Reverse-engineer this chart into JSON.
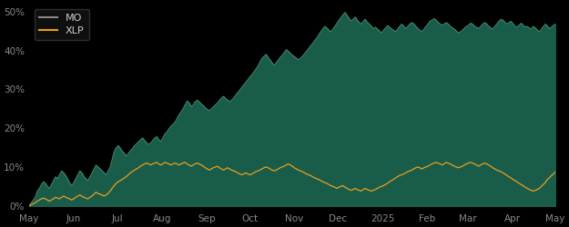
{
  "background_color": "#000000",
  "plot_bg_color": "#000000",
  "fill_color": "#1a5c4a",
  "mo_line_color": "#4a8c7c",
  "xlp_line_color": "#e8a020",
  "legend_text_color": "#cccccc",
  "tick_color": "#888888",
  "ylim": [
    -0.01,
    0.52
  ],
  "yticks": [
    0.0,
    0.1,
    0.2,
    0.3,
    0.4,
    0.5
  ],
  "ytick_labels": [
    "0%",
    "10%",
    "20%",
    "30%",
    "40%",
    "50%"
  ],
  "x_tick_labels": [
    "May",
    "Jun",
    "Jul",
    "Aug",
    "Sep",
    "Oct",
    "Nov",
    "Dec",
    "2025",
    "Feb",
    "Mar",
    "Apr",
    "May"
  ],
  "mo_data": [
    0.0,
    0.008,
    0.015,
    0.022,
    0.038,
    0.045,
    0.055,
    0.062,
    0.058,
    0.05,
    0.045,
    0.055,
    0.065,
    0.075,
    0.07,
    0.08,
    0.09,
    0.085,
    0.078,
    0.068,
    0.058,
    0.052,
    0.06,
    0.07,
    0.08,
    0.09,
    0.085,
    0.075,
    0.07,
    0.065,
    0.075,
    0.085,
    0.095,
    0.105,
    0.1,
    0.095,
    0.09,
    0.085,
    0.08,
    0.09,
    0.1,
    0.12,
    0.14,
    0.15,
    0.155,
    0.148,
    0.14,
    0.135,
    0.128,
    0.135,
    0.142,
    0.148,
    0.155,
    0.16,
    0.165,
    0.17,
    0.175,
    0.168,
    0.162,
    0.158,
    0.162,
    0.168,
    0.175,
    0.178,
    0.17,
    0.165,
    0.175,
    0.185,
    0.19,
    0.198,
    0.205,
    0.21,
    0.215,
    0.225,
    0.235,
    0.242,
    0.25,
    0.26,
    0.27,
    0.265,
    0.255,
    0.26,
    0.268,
    0.272,
    0.268,
    0.262,
    0.258,
    0.252,
    0.248,
    0.245,
    0.25,
    0.255,
    0.26,
    0.265,
    0.272,
    0.278,
    0.282,
    0.276,
    0.272,
    0.268,
    0.272,
    0.278,
    0.285,
    0.292,
    0.298,
    0.305,
    0.312,
    0.318,
    0.325,
    0.332,
    0.338,
    0.345,
    0.352,
    0.36,
    0.37,
    0.38,
    0.385,
    0.39,
    0.382,
    0.375,
    0.368,
    0.362,
    0.368,
    0.375,
    0.382,
    0.388,
    0.395,
    0.402,
    0.398,
    0.392,
    0.388,
    0.384,
    0.38,
    0.376,
    0.38,
    0.385,
    0.392,
    0.398,
    0.405,
    0.412,
    0.418,
    0.425,
    0.432,
    0.44,
    0.448,
    0.455,
    0.462,
    0.458,
    0.452,
    0.448,
    0.455,
    0.462,
    0.47,
    0.478,
    0.485,
    0.492,
    0.498,
    0.49,
    0.482,
    0.476,
    0.48,
    0.486,
    0.478,
    0.472,
    0.468,
    0.475,
    0.48,
    0.472,
    0.468,
    0.462,
    0.456,
    0.46,
    0.455,
    0.45,
    0.445,
    0.452,
    0.458,
    0.464,
    0.46,
    0.455,
    0.452,
    0.448,
    0.455,
    0.462,
    0.468,
    0.462,
    0.456,
    0.462,
    0.468,
    0.472,
    0.468,
    0.462,
    0.456,
    0.452,
    0.448,
    0.455,
    0.462,
    0.468,
    0.475,
    0.478,
    0.482,
    0.478,
    0.472,
    0.468,
    0.465,
    0.468,
    0.472,
    0.468,
    0.462,
    0.458,
    0.455,
    0.45,
    0.445,
    0.448,
    0.452,
    0.458,
    0.462,
    0.465,
    0.47,
    0.468,
    0.462,
    0.46,
    0.456,
    0.462,
    0.468,
    0.472,
    0.468,
    0.462,
    0.458,
    0.455,
    0.462,
    0.468,
    0.475,
    0.48,
    0.478,
    0.472,
    0.468,
    0.472,
    0.475,
    0.468,
    0.462,
    0.46,
    0.465,
    0.47,
    0.465,
    0.46,
    0.462,
    0.458,
    0.455,
    0.462,
    0.458,
    0.452,
    0.448,
    0.455,
    0.462,
    0.468,
    0.462,
    0.456,
    0.46,
    0.465,
    0.468
  ],
  "xlp_data": [
    0.0,
    0.003,
    0.005,
    0.008,
    0.012,
    0.015,
    0.018,
    0.02,
    0.018,
    0.015,
    0.012,
    0.015,
    0.018,
    0.022,
    0.02,
    0.018,
    0.022,
    0.025,
    0.022,
    0.02,
    0.018,
    0.015,
    0.018,
    0.022,
    0.025,
    0.028,
    0.025,
    0.022,
    0.02,
    0.018,
    0.022,
    0.025,
    0.03,
    0.035,
    0.032,
    0.03,
    0.028,
    0.025,
    0.028,
    0.032,
    0.038,
    0.045,
    0.052,
    0.058,
    0.062,
    0.065,
    0.068,
    0.072,
    0.075,
    0.08,
    0.085,
    0.088,
    0.092,
    0.095,
    0.098,
    0.102,
    0.105,
    0.108,
    0.11,
    0.108,
    0.105,
    0.108,
    0.11,
    0.112,
    0.108,
    0.105,
    0.108,
    0.112,
    0.11,
    0.108,
    0.105,
    0.108,
    0.11,
    0.108,
    0.105,
    0.108,
    0.11,
    0.112,
    0.108,
    0.105,
    0.102,
    0.105,
    0.108,
    0.11,
    0.108,
    0.105,
    0.102,
    0.098,
    0.095,
    0.092,
    0.095,
    0.098,
    0.1,
    0.102,
    0.098,
    0.095,
    0.092,
    0.095,
    0.098,
    0.095,
    0.092,
    0.09,
    0.088,
    0.085,
    0.082,
    0.08,
    0.082,
    0.085,
    0.082,
    0.08,
    0.082,
    0.085,
    0.088,
    0.09,
    0.092,
    0.095,
    0.098,
    0.1,
    0.098,
    0.095,
    0.092,
    0.09,
    0.092,
    0.095,
    0.098,
    0.1,
    0.102,
    0.105,
    0.108,
    0.105,
    0.102,
    0.098,
    0.095,
    0.092,
    0.09,
    0.088,
    0.085,
    0.082,
    0.08,
    0.078,
    0.075,
    0.072,
    0.07,
    0.068,
    0.065,
    0.062,
    0.06,
    0.058,
    0.055,
    0.052,
    0.05,
    0.048,
    0.045,
    0.048,
    0.05,
    0.052,
    0.048,
    0.045,
    0.042,
    0.04,
    0.042,
    0.045,
    0.042,
    0.04,
    0.038,
    0.042,
    0.045,
    0.042,
    0.04,
    0.038,
    0.04,
    0.042,
    0.045,
    0.048,
    0.05,
    0.052,
    0.055,
    0.058,
    0.062,
    0.065,
    0.068,
    0.072,
    0.075,
    0.078,
    0.08,
    0.082,
    0.085,
    0.088,
    0.09,
    0.092,
    0.095,
    0.098,
    0.1,
    0.098,
    0.095,
    0.098,
    0.1,
    0.102,
    0.105,
    0.108,
    0.11,
    0.112,
    0.11,
    0.108,
    0.105,
    0.108,
    0.112,
    0.11,
    0.108,
    0.105,
    0.102,
    0.1,
    0.098,
    0.1,
    0.102,
    0.105,
    0.108,
    0.11,
    0.112,
    0.11,
    0.108,
    0.105,
    0.102,
    0.105,
    0.108,
    0.11,
    0.108,
    0.105,
    0.102,
    0.098,
    0.095,
    0.092,
    0.09,
    0.088,
    0.085,
    0.082,
    0.078,
    0.075,
    0.072,
    0.068,
    0.065,
    0.062,
    0.058,
    0.055,
    0.052,
    0.048,
    0.045,
    0.042,
    0.04,
    0.038,
    0.04,
    0.042,
    0.045,
    0.05,
    0.055,
    0.06,
    0.068,
    0.072,
    0.078,
    0.082,
    0.088
  ]
}
